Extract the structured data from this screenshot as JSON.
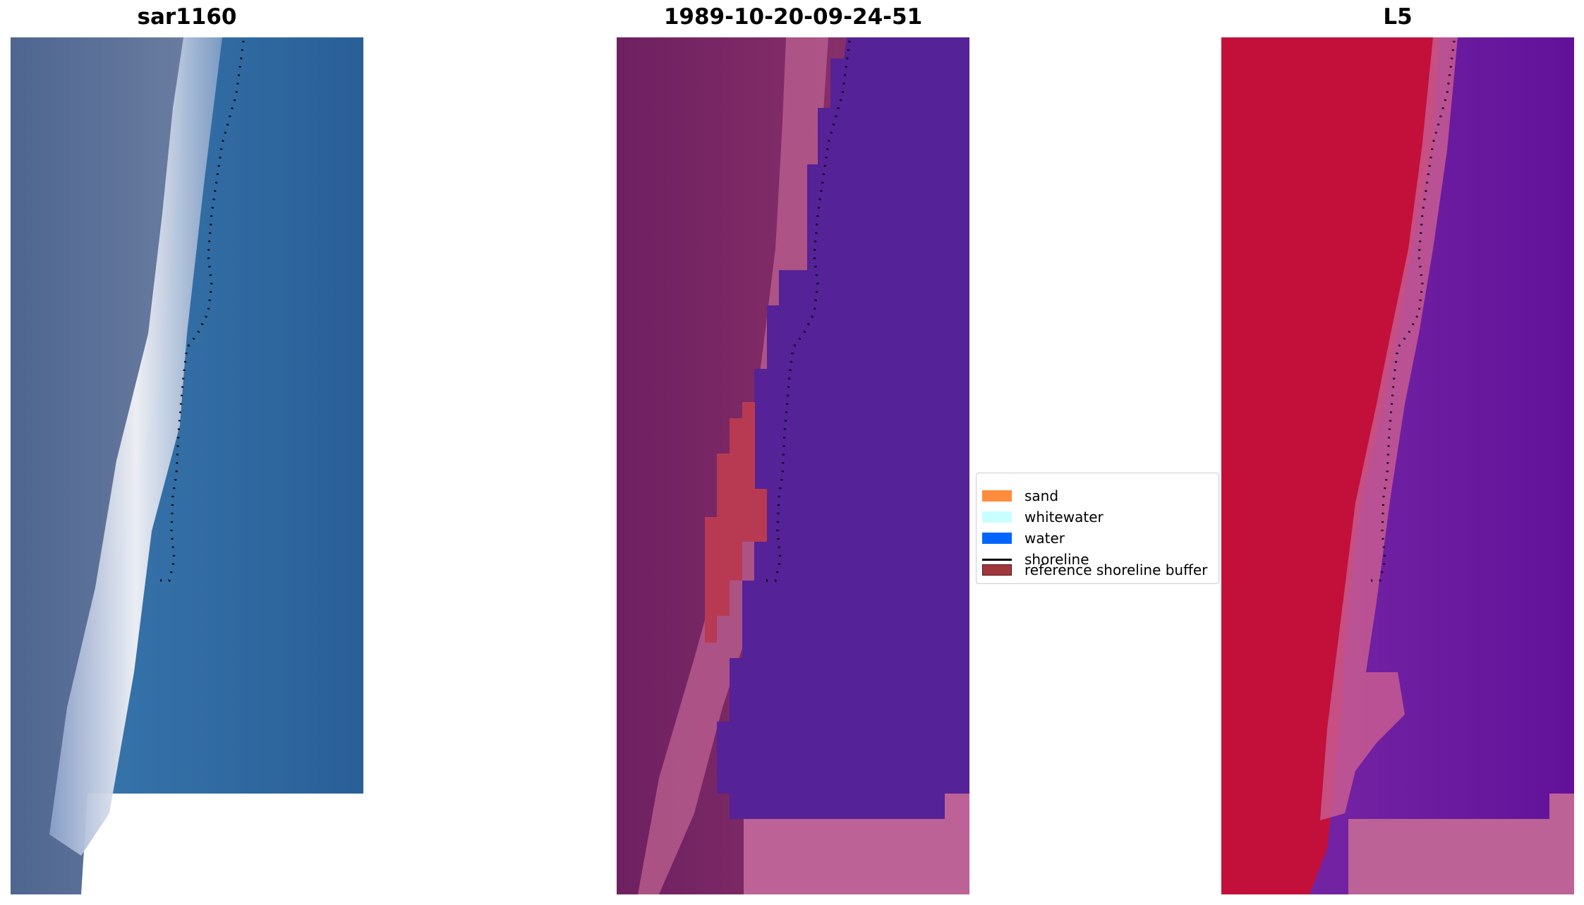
{
  "panels": [
    {
      "title": "sar1160"
    },
    {
      "title": "1989-10-20-09-24-51"
    },
    {
      "title": "L5"
    }
  ],
  "legend": {
    "items": [
      {
        "label": "sand",
        "color": "#ff8c3c",
        "kind": "patch"
      },
      {
        "label": "whitewater",
        "color": "#c8ffff",
        "kind": "patch"
      },
      {
        "label": "water",
        "color": "#0064ff",
        "kind": "patch"
      },
      {
        "label": "shoreline",
        "color": "#000000",
        "kind": "line"
      },
      {
        "label": "reference shoreline buffer",
        "color": "#a0373c",
        "kind": "patch"
      }
    ]
  },
  "colors": {
    "rgb_water": "#2e6aa3",
    "rgb_land": "#5a6f95",
    "rgb_bright": "#f2f2f6",
    "class_water": "#552297",
    "class_sand_overlay": "#822866",
    "class_buffer": "#b83a52",
    "class_nodata": "#bc6296",
    "mndwi_land": "#c2103a",
    "mndwi_water": "#6a149c",
    "mndwi_nodata": "#bc6296"
  }
}
